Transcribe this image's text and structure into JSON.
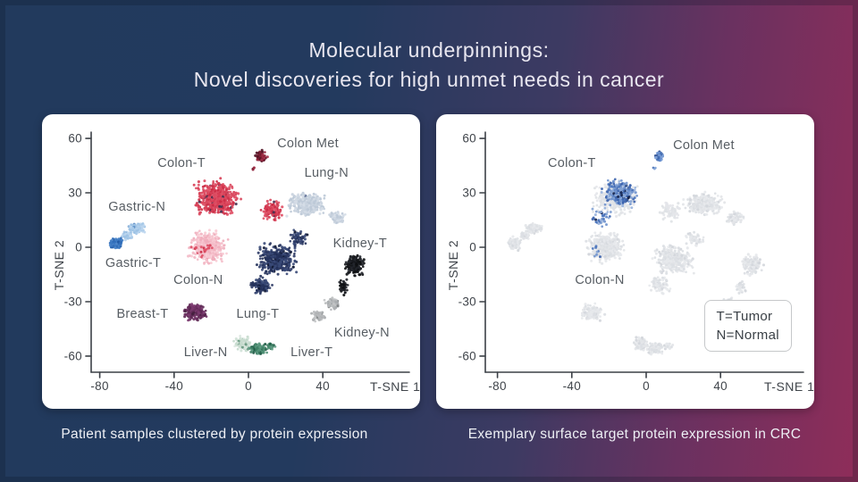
{
  "slide": {
    "title_line1": "Molecular underpinnings:",
    "title_line2": "Novel discoveries for high unmet needs in cancer",
    "background_left_color": "#223a5e",
    "background_right_color": "#8f2d59",
    "title_color": "#e9e7f0"
  },
  "chart_data": [
    {
      "id": "patient-samples-tsne",
      "type": "scatter",
      "caption": "Patient samples clustered by protein expression",
      "xlabel": "T-SNE 1",
      "ylabel": "T-SNE 2",
      "x_ticks": [
        -80,
        -40,
        0,
        40
      ],
      "y_ticks": [
        60,
        30,
        0,
        -30,
        -60
      ],
      "xlim": [
        -85,
        90
      ],
      "ylim": [
        -69,
        63
      ],
      "grid": false,
      "legend": null,
      "clusters": [
        {
          "name": "Gastric-N",
          "label": {
            "text": "Gastric-N",
            "x": -60,
            "y": 22
          },
          "colors": [
            "#abcbe9",
            "#9cc2e4",
            "#bcd6ee"
          ],
          "speckle": {
            "color": "#5d8fc6",
            "frac": 0.07
          },
          "blobs": [
            {
              "cx": -60.5,
              "cy": 10.5,
              "sx": 4.2,
              "sy": 2.6,
              "n": 125
            },
            {
              "cx": -65.5,
              "cy": 6.5,
              "sx": 2.6,
              "sy": 2.2,
              "n": 55
            }
          ]
        },
        {
          "name": "Gastric-T",
          "label": {
            "text": "Gastric-T",
            "x": -62,
            "y": -9
          },
          "colors": [
            "#3d7ac3",
            "#2f6cb8",
            "#5289cb"
          ],
          "speckle": {
            "color": "#1f55a0",
            "frac": 0.1
          },
          "blobs": [
            {
              "cx": -71,
              "cy": 2,
              "sx": 3.2,
              "sy": 3.2,
              "n": 160
            }
          ]
        },
        {
          "name": "Colon-N",
          "label": {
            "text": "Colon-N",
            "x": -27,
            "y": -18
          },
          "colors": [
            "#f4bdc9",
            "#f0aebd",
            "#f8cbd4"
          ],
          "speckle": {
            "color": "#d64961",
            "frac": 0.012
          },
          "blobs": [
            {
              "cx": -22,
              "cy": 0,
              "sx": 8.5,
              "sy": 8,
              "n": 500
            }
          ]
        },
        {
          "name": "Colon-T",
          "label": {
            "text": "Colon-T",
            "x": -36,
            "y": 46
          },
          "colors": [
            "#d73d54",
            "#cb2b44",
            "#e05066",
            "#d94b61"
          ],
          "speckle": {
            "color": "#46304f",
            "frac": 0.035
          },
          "blobs": [
            {
              "cx": -17,
              "cy": 27,
              "sx": 10,
              "sy": 8.5,
              "n": 560
            },
            {
              "cx": 13,
              "cy": 20,
              "sx": 5.5,
              "sy": 5,
              "n": 140
            },
            {
              "cx": -26,
              "cy": -1,
              "sx": 8,
              "sy": 5,
              "n": 16
            }
          ]
        },
        {
          "name": "Colon Met",
          "label": {
            "text": "Colon Met",
            "x": 32,
            "y": 57
          },
          "colors": [
            "#93273e",
            "#7e1f33",
            "#a13048"
          ],
          "speckle": {
            "color": "#521425",
            "frac": 0.25
          },
          "blobs": [
            {
              "cx": 7,
              "cy": 50,
              "sx": 2.6,
              "sy": 3,
              "n": 60
            },
            {
              "cx": 3.5,
              "cy": 43.5,
              "sx": 1.2,
              "sy": 1.2,
              "n": 4
            }
          ]
        },
        {
          "name": "Lung-N",
          "label": {
            "text": "Lung-N",
            "x": 42,
            "y": 41
          },
          "colors": [
            "#c9d3df",
            "#bcc9d7",
            "#d5dde7"
          ],
          "speckle": {
            "color": "#53628c",
            "frac": 0.012
          },
          "blobs": [
            {
              "cx": 31,
              "cy": 24,
              "sx": 9,
              "sy": 5.5,
              "n": 400
            },
            {
              "cx": 48,
              "cy": 16,
              "sx": 4,
              "sy": 3.5,
              "n": 70
            }
          ]
        },
        {
          "name": "Lung-T",
          "label": {
            "text": "Lung-T",
            "x": 5,
            "y": -37
          },
          "colors": [
            "#2d3b66",
            "#24315a",
            "#3a4a78"
          ],
          "speckle": {
            "color": "#121a34",
            "frac": 0.06
          },
          "blobs": [
            {
              "cx": 15,
              "cy": -7,
              "sx": 9,
              "sy": 7.5,
              "n": 430
            },
            {
              "cx": 7,
              "cy": -21,
              "sx": 5,
              "sy": 4.5,
              "n": 110
            },
            {
              "cx": 27,
              "cy": 5,
              "sx": 5,
              "sy": 4,
              "n": 60
            }
          ]
        },
        {
          "name": "Kidney-T",
          "label": {
            "text": "Kidney-T",
            "x": 60,
            "y": 2
          },
          "colors": [
            "#17191e",
            "#24272e",
            "#0d0f12"
          ],
          "speckle": null,
          "blobs": [
            {
              "cx": 57,
              "cy": -10,
              "sx": 5,
              "sy": 5.5,
              "n": 180
            },
            {
              "cx": 51,
              "cy": -22,
              "sx": 2.6,
              "sy": 3.5,
              "n": 45
            }
          ]
        },
        {
          "name": "Kidney-N",
          "label": {
            "text": "Kidney-N",
            "x": 61,
            "y": -47
          },
          "colors": [
            "#b6b8ba",
            "#a9acae",
            "#c3c5c7"
          ],
          "speckle": {
            "color": "#7e8284",
            "frac": 0.05
          },
          "blobs": [
            {
              "cx": 45,
              "cy": -31,
              "sx": 3.8,
              "sy": 3,
              "n": 75
            },
            {
              "cx": 38,
              "cy": -38,
              "sx": 3.4,
              "sy": 2.8,
              "n": 70
            }
          ]
        },
        {
          "name": "Breast-T",
          "label": {
            "text": "Breast-T",
            "x": -57,
            "y": -37
          },
          "colors": [
            "#6d3162",
            "#5e2954",
            "#7b3a6f"
          ],
          "speckle": {
            "color": "#461f3f",
            "frac": 0.1
          },
          "blobs": [
            {
              "cx": -29,
              "cy": -36,
              "sx": 5.5,
              "sy": 4.5,
              "n": 175
            }
          ]
        },
        {
          "name": "Liver-N",
          "label": {
            "text": "Liver-N",
            "x": -23,
            "y": -58
          },
          "colors": [
            "#d2e2d8",
            "#c5dacd",
            "#dee9e2"
          ],
          "speckle": {
            "color": "#67987f",
            "frac": 0.1
          },
          "blobs": [
            {
              "cx": -3,
              "cy": -53,
              "sx": 4,
              "sy": 3.8,
              "n": 120
            }
          ]
        },
        {
          "name": "Liver-T",
          "label": {
            "text": "Liver-T",
            "x": 34,
            "y": -58
          },
          "colors": [
            "#4f8f74",
            "#3f8165",
            "#609c84"
          ],
          "speckle": {
            "color": "#1d5944",
            "frac": 0.12
          },
          "blobs": [
            {
              "cx": 5,
              "cy": -56,
              "sx": 4.5,
              "sy": 3,
              "n": 130
            },
            {
              "cx": 12,
              "cy": -54.5,
              "sx": 2.5,
              "sy": 2,
              "n": 25
            }
          ]
        }
      ]
    },
    {
      "id": "surface-target-expression-tsne",
      "type": "scatter",
      "caption": "Exemplary surface target protein expression in CRC",
      "xlabel": "T-SNE 1",
      "ylabel": "T-SNE 2",
      "x_ticks": [
        -80,
        -40,
        0,
        40
      ],
      "y_ticks": [
        60,
        30,
        0,
        -30,
        -60
      ],
      "xlim": [
        -85,
        90
      ],
      "ylim": [
        -69,
        63
      ],
      "grid": false,
      "legend": {
        "lines": [
          "T=Tumor",
          "N=Normal"
        ],
        "cx": 57,
        "cy": -43
      },
      "clusters": [
        {
          "name": "Gastric-N",
          "highlighted": false,
          "colors": [
            "#e2e4e8",
            "#dcdfe3",
            "#e7e9ec"
          ],
          "speckle": {
            "color": "#d3d6db",
            "frac": 0.1
          },
          "blobs": [
            {
              "cx": -60.5,
              "cy": 10.5,
              "sx": 4.2,
              "sy": 2.6,
              "n": 110
            },
            {
              "cx": -65.5,
              "cy": 6.5,
              "sx": 2.6,
              "sy": 2.2,
              "n": 45
            }
          ]
        },
        {
          "name": "Gastric-T",
          "highlighted": false,
          "colors": [
            "#e2e4e8",
            "#dcdfe3",
            "#e7e9ec"
          ],
          "speckle": {
            "color": "#d3d6db",
            "frac": 0.1
          },
          "blobs": [
            {
              "cx": -71,
              "cy": 2,
              "sx": 3.2,
              "sy": 3.2,
              "n": 130
            }
          ]
        },
        {
          "name": "Colon-N",
          "highlighted": false,
          "label": {
            "text": "Colon-N",
            "x": -25,
            "y": -18
          },
          "colors": [
            "#e2e4e8",
            "#dcdfe3",
            "#e7e9ec"
          ],
          "speckle": {
            "color": "#d3d6db",
            "frac": 0.1
          },
          "blobs": [
            {
              "cx": -22,
              "cy": 0,
              "sx": 8.5,
              "sy": 8,
              "n": 420
            }
          ]
        },
        {
          "name": "Colon-T-background",
          "highlighted": false,
          "colors": [
            "#e4e6ea",
            "#dfe2e6"
          ],
          "speckle": null,
          "blobs": [
            {
              "cx": -17,
              "cy": 27,
              "sx": 10,
              "sy": 8.5,
              "n": 300
            },
            {
              "cx": 13,
              "cy": 20,
              "sx": 5.5,
              "sy": 5,
              "n": 80
            }
          ]
        },
        {
          "name": "Lung-N",
          "highlighted": false,
          "colors": [
            "#e2e4e8",
            "#dcdfe3",
            "#e7e9ec"
          ],
          "speckle": {
            "color": "#d3d6db",
            "frac": 0.1
          },
          "blobs": [
            {
              "cx": 31,
              "cy": 24,
              "sx": 9,
              "sy": 5.5,
              "n": 340
            },
            {
              "cx": 48,
              "cy": 16,
              "sx": 4,
              "sy": 3.5,
              "n": 60
            }
          ]
        },
        {
          "name": "Lung-T",
          "highlighted": false,
          "colors": [
            "#e2e4e8",
            "#dcdfe3",
            "#e7e9ec"
          ],
          "speckle": {
            "color": "#d3d6db",
            "frac": 0.1
          },
          "blobs": [
            {
              "cx": 15,
              "cy": -7,
              "sx": 9,
              "sy": 7.5,
              "n": 360
            },
            {
              "cx": 7,
              "cy": -21,
              "sx": 5,
              "sy": 4.5,
              "n": 90
            },
            {
              "cx": 27,
              "cy": 5,
              "sx": 5,
              "sy": 4,
              "n": 50
            }
          ]
        },
        {
          "name": "Kidney-T",
          "highlighted": false,
          "colors": [
            "#e2e4e8",
            "#dcdfe3",
            "#e7e9ec"
          ],
          "speckle": {
            "color": "#d3d6db",
            "frac": 0.1
          },
          "blobs": [
            {
              "cx": 57,
              "cy": -10,
              "sx": 5,
              "sy": 5.5,
              "n": 150
            },
            {
              "cx": 51,
              "cy": -22,
              "sx": 2.6,
              "sy": 3.5,
              "n": 38
            }
          ]
        },
        {
          "name": "Kidney-N",
          "highlighted": false,
          "colors": [
            "#e2e4e8",
            "#dcdfe3",
            "#e7e9ec"
          ],
          "speckle": {
            "color": "#d3d6db",
            "frac": 0.1
          },
          "blobs": [
            {
              "cx": 45,
              "cy": -31,
              "sx": 3.8,
              "sy": 3,
              "n": 62
            },
            {
              "cx": 38,
              "cy": -38,
              "sx": 3.4,
              "sy": 2.8,
              "n": 58
            }
          ]
        },
        {
          "name": "Breast-T",
          "highlighted": false,
          "colors": [
            "#e2e4e8",
            "#dcdfe3",
            "#e7e9ec"
          ],
          "speckle": {
            "color": "#d3d6db",
            "frac": 0.1
          },
          "blobs": [
            {
              "cx": -29,
              "cy": -36,
              "sx": 5.5,
              "sy": 4.5,
              "n": 145
            }
          ]
        },
        {
          "name": "Liver-N",
          "highlighted": false,
          "colors": [
            "#e2e4e8",
            "#dcdfe3",
            "#e7e9ec"
          ],
          "speckle": {
            "color": "#d3d6db",
            "frac": 0.1
          },
          "blobs": [
            {
              "cx": -3,
              "cy": -53,
              "sx": 4,
              "sy": 3.8,
              "n": 100
            }
          ]
        },
        {
          "name": "Liver-T",
          "highlighted": false,
          "colors": [
            "#e2e4e8",
            "#dcdfe3",
            "#e7e9ec"
          ],
          "speckle": {
            "color": "#d3d6db",
            "frac": 0.1
          },
          "blobs": [
            {
              "cx": 5,
              "cy": -56,
              "sx": 4.5,
              "sy": 3,
              "n": 108
            },
            {
              "cx": 12,
              "cy": -54.5,
              "sx": 2.5,
              "sy": 2,
              "n": 20
            }
          ]
        },
        {
          "name": "Colon-T",
          "highlighted": true,
          "label": {
            "text": "Colon-T",
            "x": -40,
            "y": 46
          },
          "colors": [
            "#4a74bd",
            "#6f92cd",
            "#98b2dd",
            "#3a62ad",
            "#84a3d4"
          ],
          "speckle": {
            "color": "#16254c",
            "frac": 0.04
          },
          "blobs": [
            {
              "cx": -14,
              "cy": 30,
              "sx": 8.5,
              "sy": 7,
              "n": 240
            },
            {
              "cx": -24,
              "cy": 16,
              "sx": 5,
              "sy": 5,
              "n": 40
            },
            {
              "cx": -27,
              "cy": -2,
              "sx": 3,
              "sy": 8,
              "n": 8
            }
          ]
        },
        {
          "name": "Colon Met",
          "highlighted": true,
          "label": {
            "text": "Colon Met",
            "x": 31,
            "y": 56
          },
          "colors": [
            "#5c85cb",
            "#7fa2d7",
            "#4670b5"
          ],
          "speckle": {
            "color": "#2c4f93",
            "frac": 0.15
          },
          "blobs": [
            {
              "cx": 7,
              "cy": 50,
              "sx": 2.2,
              "sy": 2.6,
              "n": 50
            },
            {
              "cx": 4,
              "cy": 44,
              "sx": 1,
              "sy": 1,
              "n": 3
            }
          ]
        }
      ]
    }
  ]
}
